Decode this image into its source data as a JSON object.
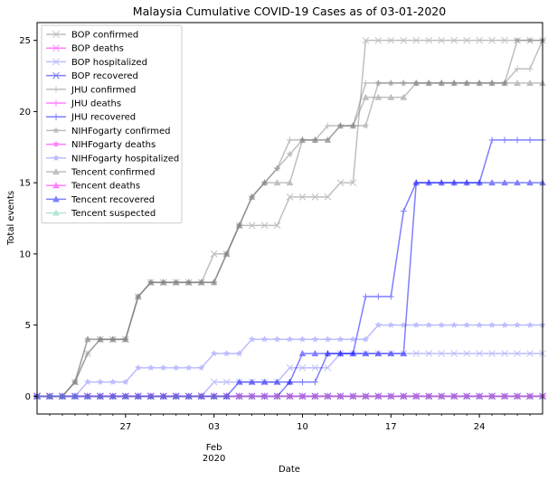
{
  "chart_data": {
    "type": "line",
    "title": "Malaysia Cumulative COVID-19 Cases as of 03-01-2020",
    "xlabel": "Date",
    "ylabel": "Total events",
    "x_start": "2020-01-20",
    "x": [
      "2020-01-20",
      "2020-01-21",
      "2020-01-22",
      "2020-01-23",
      "2020-01-24",
      "2020-01-25",
      "2020-01-26",
      "2020-01-27",
      "2020-01-28",
      "2020-01-29",
      "2020-01-30",
      "2020-01-31",
      "2020-02-01",
      "2020-02-02",
      "2020-02-03",
      "2020-02-04",
      "2020-02-05",
      "2020-02-06",
      "2020-02-07",
      "2020-02-08",
      "2020-02-09",
      "2020-02-10",
      "2020-02-11",
      "2020-02-12",
      "2020-02-13",
      "2020-02-14",
      "2020-02-15",
      "2020-02-16",
      "2020-02-17",
      "2020-02-18",
      "2020-02-19",
      "2020-02-20",
      "2020-02-21",
      "2020-02-22",
      "2020-02-23",
      "2020-02-24",
      "2020-02-25",
      "2020-02-26",
      "2020-02-27",
      "2020-02-28",
      "2020-02-29"
    ],
    "xlim": [
      "2020-01-20",
      "2020-02-29"
    ],
    "ylim": [
      -1.25,
      26.25
    ],
    "y_ticks": [
      0,
      5,
      10,
      15,
      20,
      25
    ],
    "x_ticks": [
      {
        "date": "2020-01-27",
        "label": "27",
        "sub": ""
      },
      {
        "date": "2020-02-03",
        "label": "03",
        "sub": "Feb\n2020"
      },
      {
        "date": "2020-02-10",
        "label": "10",
        "sub": ""
      },
      {
        "date": "2020-02-17",
        "label": "17",
        "sub": ""
      },
      {
        "date": "2020-02-24",
        "label": "24",
        "sub": ""
      }
    ],
    "legend_position": "upper-left",
    "grid": false,
    "series": [
      {
        "name": "BOP confirmed",
        "color": "#808080",
        "marker": "x",
        "values": [
          0,
          0,
          0,
          1,
          3,
          4,
          4,
          4,
          7,
          8,
          8,
          8,
          8,
          8,
          10,
          10,
          12,
          12,
          12,
          12,
          14,
          14,
          14,
          14,
          15,
          15,
          25,
          25,
          25,
          25,
          25,
          25,
          25,
          25,
          25,
          25,
          25,
          25,
          25,
          25,
          25
        ]
      },
      {
        "name": "BOP deaths",
        "color": "#ff00ff",
        "marker": "x",
        "values": [
          0,
          0,
          0,
          0,
          0,
          0,
          0,
          0,
          0,
          0,
          0,
          0,
          0,
          0,
          0,
          0,
          0,
          0,
          0,
          0,
          0,
          0,
          0,
          0,
          0,
          0,
          0,
          0,
          0,
          0,
          0,
          0,
          0,
          0,
          0,
          0,
          0,
          0,
          0,
          0,
          0
        ]
      },
      {
        "name": "BOP hospitalized",
        "color": "#7b7bff",
        "marker": "x",
        "values": [
          0,
          0,
          0,
          0,
          0,
          0,
          0,
          0,
          0,
          0,
          0,
          0,
          0,
          0,
          1,
          1,
          1,
          1,
          1,
          1,
          2,
          2,
          2,
          2,
          3,
          3,
          3,
          3,
          3,
          3,
          3,
          3,
          3,
          3,
          3,
          3,
          3,
          3,
          3,
          3,
          3
        ]
      },
      {
        "name": "BOP recovered",
        "color": "#0000ff",
        "marker": "x",
        "values": [
          0,
          0,
          0,
          0,
          0,
          0,
          0,
          0,
          0,
          0,
          0,
          0,
          0,
          0,
          0,
          0,
          0,
          0,
          0,
          0,
          0,
          0,
          0,
          0,
          0,
          0,
          0,
          0,
          0,
          0,
          0,
          0,
          0,
          0,
          0,
          0,
          0,
          0,
          0,
          0,
          0
        ]
      },
      {
        "name": "JHU confirmed",
        "color": "#808080",
        "marker": "+",
        "values": [
          0,
          0,
          0,
          1,
          3,
          4,
          4,
          4,
          7,
          8,
          8,
          8,
          8,
          8,
          8,
          10,
          12,
          14,
          15,
          16,
          18,
          18,
          18,
          19,
          19,
          19,
          22,
          22,
          22,
          22,
          22,
          22,
          22,
          22,
          22,
          22,
          22,
          22,
          23,
          23,
          25
        ]
      },
      {
        "name": "JHU deaths",
        "color": "#ff00ff",
        "marker": "+",
        "values": [
          0,
          0,
          0,
          0,
          0,
          0,
          0,
          0,
          0,
          0,
          0,
          0,
          0,
          0,
          0,
          0,
          0,
          0,
          0,
          0,
          0,
          0,
          0,
          0,
          0,
          0,
          0,
          0,
          0,
          0,
          0,
          0,
          0,
          0,
          0,
          0,
          0,
          0,
          0,
          0,
          0
        ]
      },
      {
        "name": "JHU recovered",
        "color": "#0000ff",
        "marker": "+",
        "values": [
          0,
          0,
          0,
          0,
          0,
          0,
          0,
          0,
          0,
          0,
          0,
          0,
          0,
          0,
          0,
          0,
          0,
          0,
          0,
          0,
          1,
          1,
          1,
          3,
          3,
          3,
          7,
          7,
          7,
          13,
          15,
          15,
          15,
          15,
          15,
          15,
          18,
          18,
          18,
          18,
          18
        ]
      },
      {
        "name": "NIHFogarty confirmed",
        "color": "#808080",
        "marker": "*",
        "values": [
          0,
          0,
          0,
          1,
          4,
          4,
          4,
          4,
          7,
          8,
          8,
          8,
          8,
          8,
          8,
          10,
          12,
          14,
          15,
          16,
          17,
          18,
          18,
          18,
          19,
          19,
          19,
          22,
          22,
          22,
          22,
          22,
          22,
          22,
          22,
          22,
          22,
          22,
          25,
          25,
          25
        ]
      },
      {
        "name": "NIHFogarty deaths",
        "color": "#ff00ff",
        "marker": "*",
        "values": [
          0,
          0,
          0,
          0,
          0,
          0,
          0,
          0,
          0,
          0,
          0,
          0,
          0,
          0,
          0,
          0,
          0,
          0,
          0,
          0,
          0,
          0,
          0,
          0,
          0,
          0,
          0,
          0,
          0,
          0,
          0,
          0,
          0,
          0,
          0,
          0,
          0,
          0,
          0,
          0,
          0
        ]
      },
      {
        "name": "NIHFogarty hospitalized",
        "color": "#7b7bff",
        "marker": "*",
        "values": [
          0,
          0,
          0,
          0,
          1,
          1,
          1,
          1,
          2,
          2,
          2,
          2,
          2,
          2,
          3,
          3,
          3,
          4,
          4,
          4,
          4,
          4,
          4,
          4,
          4,
          4,
          4,
          5,
          5,
          5,
          5,
          5,
          5,
          5,
          5,
          5,
          5,
          5,
          5,
          5,
          5
        ]
      },
      {
        "name": "Tencent confirmed",
        "color": "#808080",
        "marker": "^",
        "values": [
          0,
          0,
          0,
          1,
          4,
          4,
          4,
          4,
          7,
          8,
          8,
          8,
          8,
          8,
          8,
          10,
          12,
          14,
          15,
          15,
          15,
          18,
          18,
          18,
          19,
          19,
          21,
          21,
          21,
          21,
          22,
          22,
          22,
          22,
          22,
          22,
          22,
          22,
          22,
          22,
          22
        ]
      },
      {
        "name": "Tencent deaths",
        "color": "#ff00ff",
        "marker": "^",
        "values": [
          0,
          0,
          0,
          0,
          0,
          0,
          0,
          0,
          0,
          0,
          0,
          0,
          0,
          0,
          0,
          0,
          0,
          0,
          0,
          0,
          0,
          0,
          0,
          0,
          0,
          0,
          0,
          0,
          0,
          0,
          0,
          0,
          0,
          0,
          0,
          0,
          0,
          0,
          0,
          0,
          0
        ]
      },
      {
        "name": "Tencent recovered",
        "color": "#0000ff",
        "marker": "^",
        "values": [
          0,
          0,
          0,
          0,
          0,
          0,
          0,
          0,
          0,
          0,
          0,
          0,
          0,
          0,
          0,
          0,
          1,
          1,
          1,
          1,
          1,
          3,
          3,
          3,
          3,
          3,
          3,
          3,
          3,
          3,
          15,
          15,
          15,
          15,
          15,
          15,
          15,
          15,
          15,
          15,
          15
        ]
      },
      {
        "name": "Tencent suspected",
        "color": "#66cdaa",
        "marker": "^",
        "values": [
          0,
          0,
          0,
          0,
          0,
          0,
          0,
          0,
          0,
          0,
          0,
          0,
          0,
          0,
          0,
          0,
          0,
          0,
          0,
          0,
          0,
          0,
          0,
          0,
          0,
          0,
          0,
          0,
          0,
          0,
          0,
          0,
          0,
          0,
          0,
          0,
          0,
          0,
          0,
          0,
          0
        ]
      }
    ]
  }
}
